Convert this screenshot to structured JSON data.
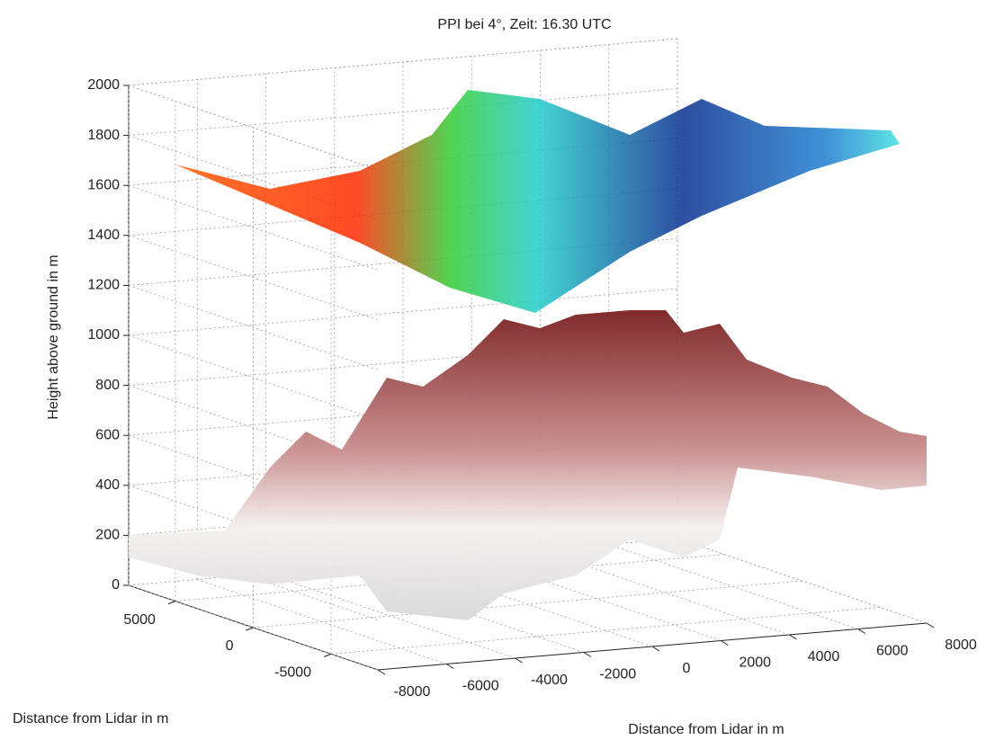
{
  "chart_data": {
    "type": "surface3d",
    "title": "PPI bei 4°, Zeit: 16.30 UTC",
    "xlabel": "Distance from Lidar in m",
    "ylabel": "Distance from  Lidar in m",
    "zlabel": "Height above ground in m",
    "xlim": [
      -8000,
      8000
    ],
    "xticks": [
      -8000,
      -6000,
      -4000,
      -2000,
      0,
      2000,
      4000,
      6000,
      8000
    ],
    "ylim": [
      -8000,
      8000
    ],
    "yticks": [
      -5000,
      0,
      5000
    ],
    "zlim": [
      0,
      2000
    ],
    "zticks": [
      0,
      200,
      400,
      600,
      800,
      1000,
      1200,
      1400,
      1600,
      1800,
      2000
    ],
    "grid": true
  }
}
